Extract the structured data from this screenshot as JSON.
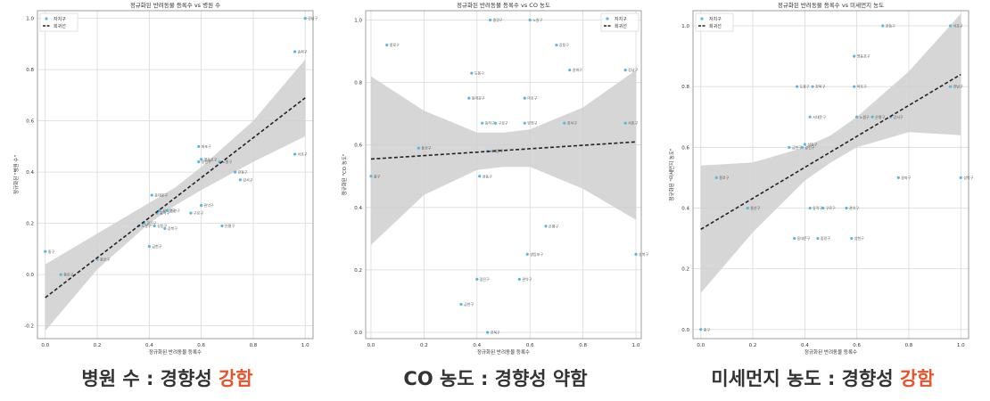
{
  "captions": [
    {
      "text": "병원 수 : 경향성 ",
      "highlight": "강함"
    },
    {
      "text": "CO 농도 : 경향성 약함",
      "highlight": ""
    },
    {
      "text": "미세먼지 농도 : 경향성 ",
      "highlight": "강함"
    }
  ],
  "colors": {
    "point": "#5bb6e3",
    "fit": "#222222",
    "band": "#cfcfcf",
    "grid": "#d9d9d9",
    "axis": "#333333",
    "highlight": "#e8532b"
  },
  "chart_data": [
    {
      "type": "scatter",
      "title": "정규화된 반려동물 등록수 vs 병원 수",
      "xlabel": "정규화된 반려동물 등록수",
      "ylabel": "정규화된 \"병원 수\"",
      "xlim": [
        -0.03,
        1.03
      ],
      "ylim": [
        -0.25,
        1.03
      ],
      "xticks": [
        0.0,
        0.2,
        0.4,
        0.6,
        0.8,
        1.0
      ],
      "xtick_labels": [
        "0.0",
        "0.2",
        "0.4",
        "0.6",
        "0.8",
        "1.0"
      ],
      "yticks": [
        -0.2,
        0.0,
        0.2,
        0.4,
        0.6,
        0.8,
        1.0
      ],
      "ytick_labels": [
        "-0.2",
        "0.0",
        "0.2",
        "0.4",
        "0.6",
        "0.8",
        "1.0"
      ],
      "grid": true,
      "legend": {
        "position": "top-left",
        "entries": [
          "자치구",
          "회귀선"
        ]
      },
      "points": [
        {
          "x": 0.0,
          "y": 0.09,
          "label": "중구"
        },
        {
          "x": 0.06,
          "y": 0.0,
          "label": "종로구"
        },
        {
          "x": 0.2,
          "y": 0.06,
          "label": "용산구"
        },
        {
          "x": 0.4,
          "y": 0.11,
          "label": "금천구"
        },
        {
          "x": 0.41,
          "y": 0.31,
          "label": "동대문구"
        },
        {
          "x": 0.36,
          "y": 0.19,
          "label": "도봉구"
        },
        {
          "x": 0.38,
          "y": 0.2,
          "label": "광진구"
        },
        {
          "x": 0.42,
          "y": 0.19,
          "label": "성동구"
        },
        {
          "x": 0.43,
          "y": 0.24,
          "label": "동작구"
        },
        {
          "x": 0.44,
          "y": 0.25,
          "label": "서대문구"
        },
        {
          "x": 0.46,
          "y": 0.18,
          "label": "강북구"
        },
        {
          "x": 0.47,
          "y": 0.25,
          "label": "중랑구"
        },
        {
          "x": 0.56,
          "y": 0.24,
          "label": "구로구"
        },
        {
          "x": 0.6,
          "y": 0.27,
          "label": "관악구"
        },
        {
          "x": 0.59,
          "y": 0.44,
          "label": "양천구"
        },
        {
          "x": 0.59,
          "y": 0.5,
          "label": "마포구"
        },
        {
          "x": 0.6,
          "y": 0.45,
          "label": "영등포구"
        },
        {
          "x": 0.67,
          "y": 0.44,
          "label": "노원구"
        },
        {
          "x": 0.68,
          "y": 0.19,
          "label": "은평구"
        },
        {
          "x": 0.73,
          "y": 0.4,
          "label": "강동구"
        },
        {
          "x": 0.75,
          "y": 0.37,
          "label": "강서구"
        },
        {
          "x": 0.96,
          "y": 0.87,
          "label": "송파구"
        },
        {
          "x": 0.96,
          "y": 0.47,
          "label": "서초구"
        },
        {
          "x": 1.0,
          "y": 1.0,
          "label": "강남구"
        }
      ],
      "fit": {
        "x": [
          0.0,
          1.0
        ],
        "y": [
          -0.09,
          0.69
        ]
      },
      "band": {
        "x": [
          0.0,
          0.2,
          0.4,
          0.5,
          0.6,
          0.8,
          1.0
        ],
        "lower": [
          -0.22,
          0.02,
          0.2,
          0.27,
          0.33,
          0.44,
          0.54
        ],
        "upper": [
          0.04,
          0.16,
          0.28,
          0.34,
          0.42,
          0.6,
          0.84
        ]
      }
    },
    {
      "type": "scatter",
      "title": "정규화된 반려동물 등록수 vs CO 농도",
      "xlabel": "정규화된 반려동물 등록수",
      "ylabel": "정규화된 \"CO 농도\"",
      "xlim": [
        -0.02,
        1.02
      ],
      "ylim": [
        -0.02,
        1.03
      ],
      "xticks": [
        0.0,
        0.2,
        0.4,
        0.6,
        0.8,
        1.0
      ],
      "xtick_labels": [
        "0.0",
        "0.2",
        "0.4",
        "0.6",
        "0.8",
        "1.0"
      ],
      "yticks": [
        0.0,
        0.2,
        0.4,
        0.6,
        0.8,
        1.0
      ],
      "ytick_labels": [
        "0.0",
        "0.2",
        "0.4",
        "0.6",
        "0.8",
        "1.0"
      ],
      "grid": true,
      "legend": {
        "position": "top-right",
        "entries": [
          "자치구",
          "회귀선"
        ]
      },
      "points": [
        {
          "x": 0.0,
          "y": 0.5,
          "label": "중구"
        },
        {
          "x": 0.06,
          "y": 0.92,
          "label": "종로구"
        },
        {
          "x": 0.18,
          "y": 0.59,
          "label": "용산구"
        },
        {
          "x": 0.34,
          "y": 0.09,
          "label": "금천구"
        },
        {
          "x": 0.37,
          "y": 0.75,
          "label": "동대문구"
        },
        {
          "x": 0.38,
          "y": 0.83,
          "label": "도봉구"
        },
        {
          "x": 0.4,
          "y": 0.17,
          "label": "광진구"
        },
        {
          "x": 0.41,
          "y": 0.5,
          "label": "성동구"
        },
        {
          "x": 0.42,
          "y": 0.67,
          "label": "동작구"
        },
        {
          "x": 0.44,
          "y": 0.58,
          "label": "서대문구"
        },
        {
          "x": 0.44,
          "y": 0.0,
          "label": "강북구"
        },
        {
          "x": 0.45,
          "y": 1.0,
          "label": "중랑구"
        },
        {
          "x": 0.47,
          "y": 0.67,
          "label": "구로구"
        },
        {
          "x": 0.56,
          "y": 0.17,
          "label": "관악구"
        },
        {
          "x": 0.58,
          "y": 0.67,
          "label": "양천구"
        },
        {
          "x": 0.58,
          "y": 0.75,
          "label": "마포구"
        },
        {
          "x": 0.59,
          "y": 0.25,
          "label": "영등포구"
        },
        {
          "x": 0.6,
          "y": 1.0,
          "label": "노원구"
        },
        {
          "x": 0.66,
          "y": 0.34,
          "label": "은평구"
        },
        {
          "x": 0.7,
          "y": 0.92,
          "label": "강동구"
        },
        {
          "x": 0.73,
          "y": 0.67,
          "label": "강서구"
        },
        {
          "x": 0.75,
          "y": 0.84,
          "label": "송파구"
        },
        {
          "x": 0.96,
          "y": 0.67,
          "label": "서초구"
        },
        {
          "x": 0.96,
          "y": 0.84,
          "label": "강남구"
        },
        {
          "x": 1.0,
          "y": 0.25,
          "label": "성북구"
        }
      ],
      "fit": {
        "x": [
          0.0,
          1.0
        ],
        "y": [
          0.555,
          0.61
        ]
      },
      "band": {
        "x": [
          0.0,
          0.2,
          0.4,
          0.5,
          0.6,
          0.8,
          1.0
        ],
        "lower": [
          0.28,
          0.44,
          0.52,
          0.53,
          0.53,
          0.46,
          0.36
        ],
        "upper": [
          0.82,
          0.71,
          0.64,
          0.64,
          0.65,
          0.72,
          0.84
        ]
      }
    },
    {
      "type": "scatter",
      "title": "정규화된 반려동물 등록수 vs 미세먼지 농도",
      "xlabel": "정규화된 반려동물 등록수",
      "ylabel": "정규화된 \"미세먼지 농도\"",
      "xlim": [
        -0.03,
        1.03
      ],
      "ylim": [
        -0.03,
        1.05
      ],
      "xticks": [
        0.0,
        0.2,
        0.4,
        0.6,
        0.8,
        1.0
      ],
      "xtick_labels": [
        "0.0",
        "0.2",
        "0.4",
        "0.6",
        "0.8",
        "1.0"
      ],
      "yticks": [
        0.0,
        0.2,
        0.4,
        0.6,
        0.8,
        1.0
      ],
      "ytick_labels": [
        "0.0",
        "0.2",
        "0.4",
        "0.6",
        "0.8",
        "1.0"
      ],
      "grid": true,
      "legend": {
        "position": "top-left",
        "entries": [
          "자치구",
          "회귀선"
        ]
      },
      "points": [
        {
          "x": 0.0,
          "y": 0.0,
          "label": "중구"
        },
        {
          "x": 0.06,
          "y": 0.5,
          "label": "종로구"
        },
        {
          "x": 0.18,
          "y": 0.4,
          "label": "용산구"
        },
        {
          "x": 0.34,
          "y": 0.6,
          "label": "금천구"
        },
        {
          "x": 0.36,
          "y": 0.3,
          "label": "동대문구"
        },
        {
          "x": 0.37,
          "y": 0.8,
          "label": "도봉구"
        },
        {
          "x": 0.39,
          "y": 0.6,
          "label": "광진구"
        },
        {
          "x": 0.4,
          "y": 0.61,
          "label": "성동구"
        },
        {
          "x": 0.42,
          "y": 0.4,
          "label": "동작구"
        },
        {
          "x": 0.42,
          "y": 0.7,
          "label": "서대문구"
        },
        {
          "x": 0.43,
          "y": 0.8,
          "label": "강북구"
        },
        {
          "x": 0.45,
          "y": 0.3,
          "label": "중랑구"
        },
        {
          "x": 0.47,
          "y": 0.4,
          "label": "구로구"
        },
        {
          "x": 0.56,
          "y": 0.4,
          "label": "관악구"
        },
        {
          "x": 0.58,
          "y": 0.3,
          "label": "양천구"
        },
        {
          "x": 0.59,
          "y": 0.8,
          "label": "마포구"
        },
        {
          "x": 0.59,
          "y": 0.9,
          "label": "영등포구"
        },
        {
          "x": 0.6,
          "y": 0.7,
          "label": "노원구"
        },
        {
          "x": 0.66,
          "y": 0.7,
          "label": "은평구"
        },
        {
          "x": 0.7,
          "y": 1.0,
          "label": "강동구"
        },
        {
          "x": 0.73,
          "y": 0.7,
          "label": "강서구"
        },
        {
          "x": 0.76,
          "y": 0.5,
          "label": "송파구"
        },
        {
          "x": 0.96,
          "y": 1.0,
          "label": "서초구"
        },
        {
          "x": 0.96,
          "y": 0.8,
          "label": "강남구"
        },
        {
          "x": 1.0,
          "y": 0.5,
          "label": "성북구"
        }
      ],
      "fit": {
        "x": [
          0.0,
          1.0
        ],
        "y": [
          0.33,
          0.84
        ]
      },
      "band": {
        "x": [
          0.0,
          0.2,
          0.4,
          0.5,
          0.6,
          0.8,
          1.0
        ],
        "lower": [
          0.12,
          0.32,
          0.49,
          0.55,
          0.6,
          0.65,
          0.64
        ],
        "upper": [
          0.54,
          0.55,
          0.6,
          0.64,
          0.7,
          0.85,
          1.04
        ]
      }
    }
  ]
}
